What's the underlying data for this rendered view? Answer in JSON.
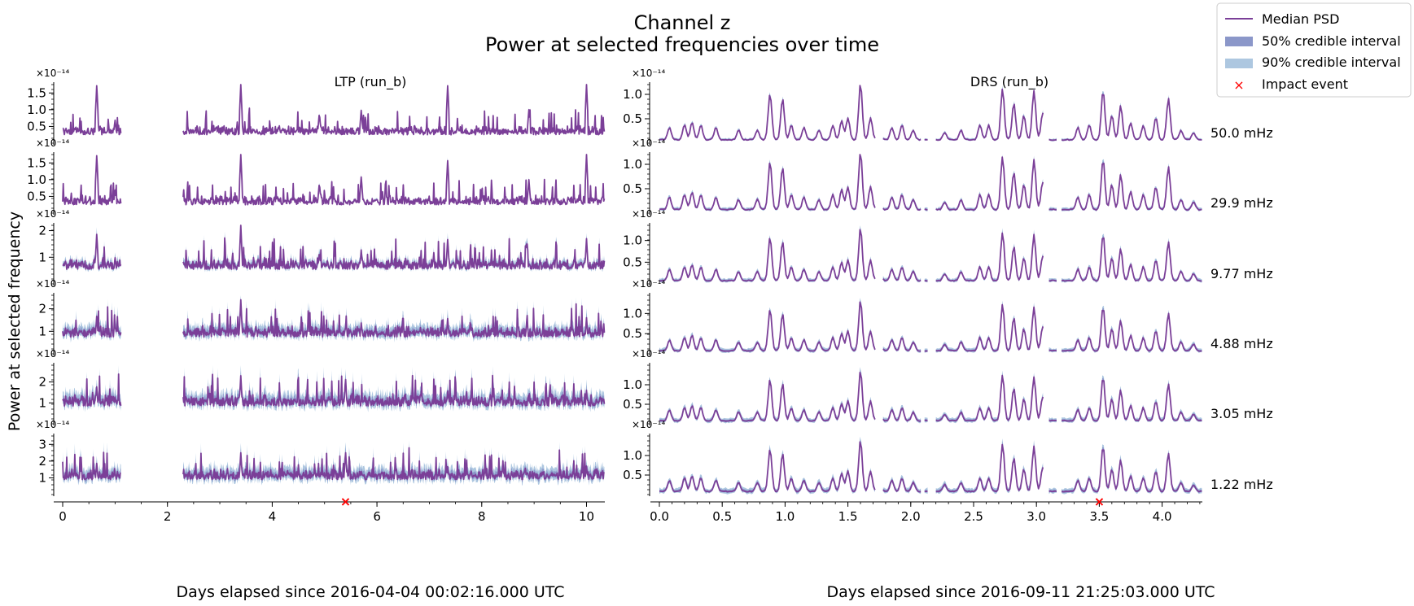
{
  "chart_data": {
    "type": "line",
    "title": "Channel z",
    "subtitle": "Power at selected frequencies over time",
    "ylabel": "Power at selected frequency",
    "exponent_label": "×10⁻¹⁴",
    "legend": {
      "placement": "top-right",
      "entries": [
        "Median PSD",
        "50% credible interval",
        "90% credible interval",
        "Impact event"
      ]
    },
    "colors": {
      "median": "#7b3f98",
      "ci50": "#8b97c9",
      "ci90": "#adc7e0",
      "impact": "#ff0000"
    },
    "grid": false,
    "frequencies": [
      "50.0 mHz",
      "29.9 mHz",
      "9.77 mHz",
      "4.88 mHz",
      "3.05 mHz",
      "1.22 mHz"
    ],
    "runs": [
      {
        "name": "LTP (run_b)",
        "xlabel": "Days elapsed since 2016-04-04 00:02:16.000 UTC",
        "xlim": [
          0,
          10.35
        ],
        "xticks": [
          "0",
          "2",
          "4",
          "6",
          "8",
          "10"
        ],
        "segments": [
          [
            0,
            1.12
          ],
          [
            2.3,
            10.35
          ]
        ],
        "impact_x": 5.4,
        "panels": [
          {
            "ylim": [
              0,
              1.75
            ],
            "yticks": [
              "0.5",
              "1.0",
              "1.5"
            ],
            "base": 0.25,
            "noise": 0.12,
            "band": 0.02,
            "spikes": [
              [
                0.65,
                1.75
              ],
              [
                3.4,
                1.75
              ],
              [
                5.7,
                1.0
              ],
              [
                7.35,
                1.75
              ],
              [
                10.0,
                1.75
              ],
              [
                4.9,
                0.9
              ],
              [
                8.9,
                1.0
              ],
              [
                1.0,
                0.7
              ]
            ]
          },
          {
            "ylim": [
              0,
              1.75
            ],
            "yticks": [
              "0.5",
              "1.0",
              "1.5"
            ],
            "base": 0.25,
            "noise": 0.12,
            "band": 0.03,
            "spikes": [
              [
                0.65,
                1.75
              ],
              [
                3.4,
                1.75
              ],
              [
                5.7,
                1.1
              ],
              [
                7.35,
                1.6
              ],
              [
                10.0,
                1.75
              ],
              [
                4.9,
                0.9
              ],
              [
                8.9,
                1.0
              ],
              [
                1.0,
                0.7
              ]
            ]
          },
          {
            "ylim": [
              0,
              2.2
            ],
            "yticks": [
              "1",
              "2"
            ],
            "base": 0.55,
            "noise": 0.18,
            "band": 0.15,
            "spikes": [
              [
                0.65,
                1.9
              ],
              [
                3.4,
                2.2
              ],
              [
                5.7,
                1.3
              ],
              [
                7.35,
                1.7
              ],
              [
                10.0,
                1.7
              ],
              [
                4.9,
                1.2
              ],
              [
                1.0,
                1.0
              ]
            ]
          },
          {
            "ylim": [
              0,
              2.6
            ],
            "yticks": [
              "1",
              "2"
            ],
            "base": 0.75,
            "noise": 0.22,
            "band": 0.3,
            "spikes": [
              [
                0.65,
                1.7
              ],
              [
                3.4,
                2.4
              ],
              [
                5.7,
                1.4
              ],
              [
                7.35,
                1.6
              ],
              [
                10.0,
                1.6
              ],
              [
                1.0,
                1.2
              ]
            ]
          },
          {
            "ylim": [
              0,
              2.8
            ],
            "yticks": [
              "1",
              "2"
            ],
            "base": 0.85,
            "noise": 0.25,
            "band": 0.38,
            "spikes": [
              [
                0.65,
                1.8
              ],
              [
                3.4,
                2.3
              ],
              [
                5.4,
                2.2
              ],
              [
                7.35,
                1.6
              ],
              [
                10.0,
                1.6
              ],
              [
                1.0,
                1.3
              ]
            ]
          },
          {
            "ylim": [
              0,
              3.5
            ],
            "yticks": [
              "1",
              "2",
              "3"
            ],
            "base": 0.9,
            "noise": 0.28,
            "band": 0.45,
            "spikes": [
              [
                0.65,
                1.9
              ],
              [
                3.4,
                2.5
              ],
              [
                5.4,
                2.6
              ],
              [
                7.35,
                1.7
              ],
              [
                10.0,
                1.7
              ],
              [
                1.0,
                1.3
              ]
            ]
          }
        ]
      },
      {
        "name": "DRS (run_b)",
        "xlabel": "Days elapsed since 2016-09-11 21:25:03.000 UTC",
        "xlim": [
          0,
          4.32
        ],
        "xticks": [
          "0.0",
          "0.5",
          "1.0",
          "1.5",
          "2.0",
          "2.5",
          "3.0",
          "3.5",
          "4.0"
        ],
        "segments": [
          [
            0,
            1.72
          ],
          [
            1.78,
            2.08
          ],
          [
            2.11,
            2.14
          ],
          [
            2.2,
            3.06
          ],
          [
            3.1,
            3.16
          ],
          [
            3.2,
            4.32
          ]
        ],
        "impact_x": 3.5,
        "panels": [
          {
            "ylim": [
              0,
              1.2
            ],
            "yticks": [
              "0.5",
              "1.0"
            ],
            "base": 0.06,
            "band": 0.03
          },
          {
            "ylim": [
              0,
              1.2
            ],
            "yticks": [
              "0.5",
              "1.0"
            ],
            "base": 0.06,
            "band": 0.04
          },
          {
            "ylim": [
              0,
              1.35
            ],
            "yticks": [
              "0.5",
              "1.0"
            ],
            "base": 0.06,
            "band": 0.05
          },
          {
            "ylim": [
              0,
              1.45
            ],
            "yticks": [
              "0.5",
              "1.0"
            ],
            "base": 0.06,
            "band": 0.06
          },
          {
            "ylim": [
              0,
              1.5
            ],
            "yticks": [
              "0.5",
              "1.0"
            ],
            "base": 0.06,
            "band": 0.07
          },
          {
            "ylim": [
              0,
              1.5
            ],
            "yticks": [
              "0.5",
              "1.0"
            ],
            "base": 0.06,
            "band": 0.08
          }
        ],
        "peaks": [
          [
            0.08,
            0.25
          ],
          [
            0.2,
            0.3
          ],
          [
            0.26,
            0.35
          ],
          [
            0.33,
            0.3
          ],
          [
            0.45,
            0.25
          ],
          [
            0.63,
            0.2
          ],
          [
            0.78,
            0.2
          ],
          [
            0.88,
            0.95
          ],
          [
            0.98,
            0.85
          ],
          [
            1.05,
            0.3
          ],
          [
            1.15,
            0.25
          ],
          [
            1.27,
            0.2
          ],
          [
            1.38,
            0.3
          ],
          [
            1.45,
            0.4
          ],
          [
            1.5,
            0.45
          ],
          [
            1.6,
            1.15
          ],
          [
            1.68,
            0.45
          ],
          [
            1.75,
            0.3
          ],
          [
            1.85,
            0.25
          ],
          [
            1.93,
            0.3
          ],
          [
            2.02,
            0.2
          ],
          [
            2.27,
            0.15
          ],
          [
            2.4,
            0.2
          ],
          [
            2.55,
            0.3
          ],
          [
            2.62,
            0.3
          ],
          [
            2.73,
            1.05
          ],
          [
            2.82,
            0.75
          ],
          [
            2.9,
            0.5
          ],
          [
            2.98,
            1.0
          ],
          [
            3.05,
            0.55
          ],
          [
            3.33,
            0.25
          ],
          [
            3.42,
            0.3
          ],
          [
            3.53,
            1.0
          ],
          [
            3.6,
            0.5
          ],
          [
            3.67,
            0.7
          ],
          [
            3.75,
            0.35
          ],
          [
            3.85,
            0.3
          ],
          [
            3.95,
            0.45
          ],
          [
            4.05,
            0.85
          ],
          [
            4.15,
            0.2
          ],
          [
            4.25,
            0.15
          ]
        ]
      }
    ]
  }
}
